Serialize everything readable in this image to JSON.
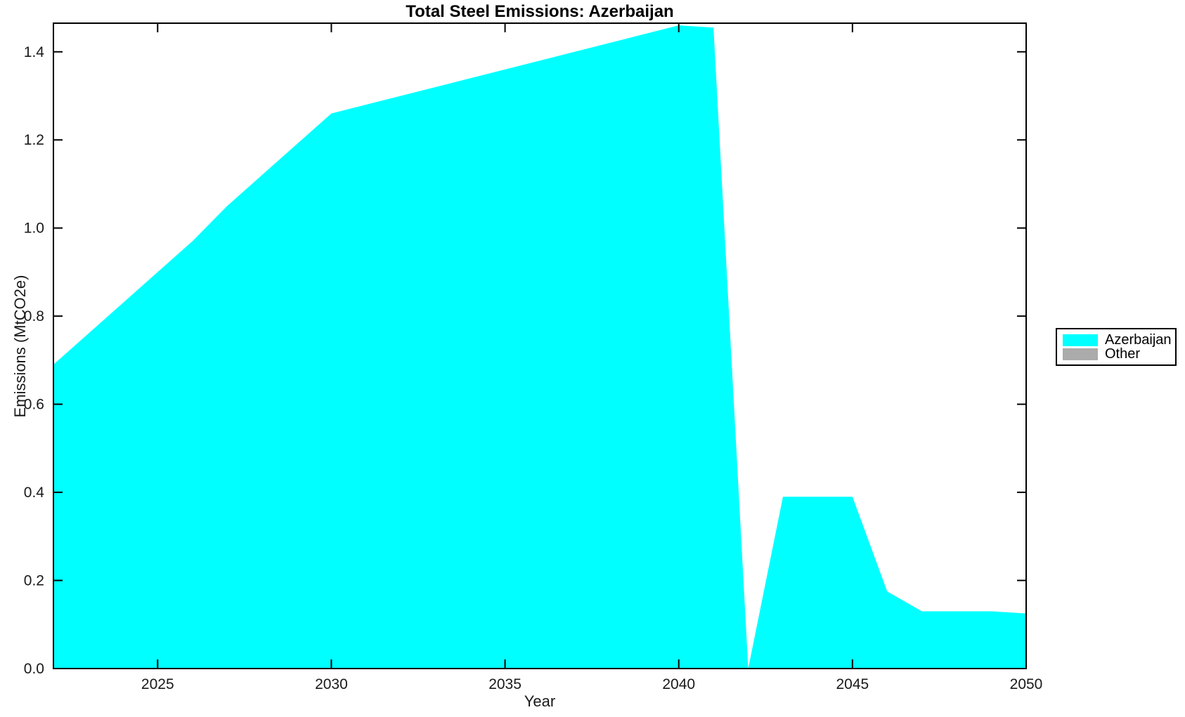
{
  "chart_data": {
    "type": "area",
    "title": "Total Steel Emissions: Azerbaijan",
    "xlabel": "Year",
    "ylabel": "Emissions (MtCO2e)",
    "xlim": [
      2022,
      2050
    ],
    "ylim": [
      0,
      1.465
    ],
    "grid": false,
    "x_ticks": [
      2025,
      2030,
      2035,
      2040,
      2045,
      2050
    ],
    "x_tick_labels": [
      "2025",
      "2030",
      "2035",
      "2040",
      "2045",
      "2050"
    ],
    "y_ticks": [
      0.0,
      0.2,
      0.4,
      0.6,
      0.8,
      1.0,
      1.2,
      1.4
    ],
    "y_tick_labels": [
      "0.0",
      "0.2",
      "0.4",
      "0.6",
      "0.8",
      "1.0",
      "1.2",
      "1.4"
    ],
    "x": [
      2022,
      2023,
      2024,
      2025,
      2026,
      2027,
      2028,
      2029,
      2030,
      2031,
      2032,
      2033,
      2034,
      2035,
      2036,
      2037,
      2038,
      2039,
      2040,
      2041,
      2042,
      2043,
      2044,
      2045,
      2046,
      2047,
      2048,
      2049,
      2050
    ],
    "series": [
      {
        "name": "Azerbaijan",
        "color": "#00ffff",
        "values": [
          0.69,
          0.76,
          0.83,
          0.9,
          0.97,
          1.05,
          1.12,
          1.19,
          1.26,
          1.28,
          1.3,
          1.32,
          1.34,
          1.36,
          1.38,
          1.4,
          1.42,
          1.44,
          1.46,
          1.455,
          0.0,
          0.39,
          0.39,
          0.39,
          0.175,
          0.13,
          0.13,
          0.13,
          0.125
        ]
      }
    ],
    "legend": [
      {
        "label": "Azerbaijan",
        "color": "#00ffff"
      },
      {
        "label": "Other",
        "color": "#ababab"
      }
    ],
    "legend_position": "outside-right",
    "axis_color": "#000000",
    "tick_label_color": "#1a1a1a"
  }
}
